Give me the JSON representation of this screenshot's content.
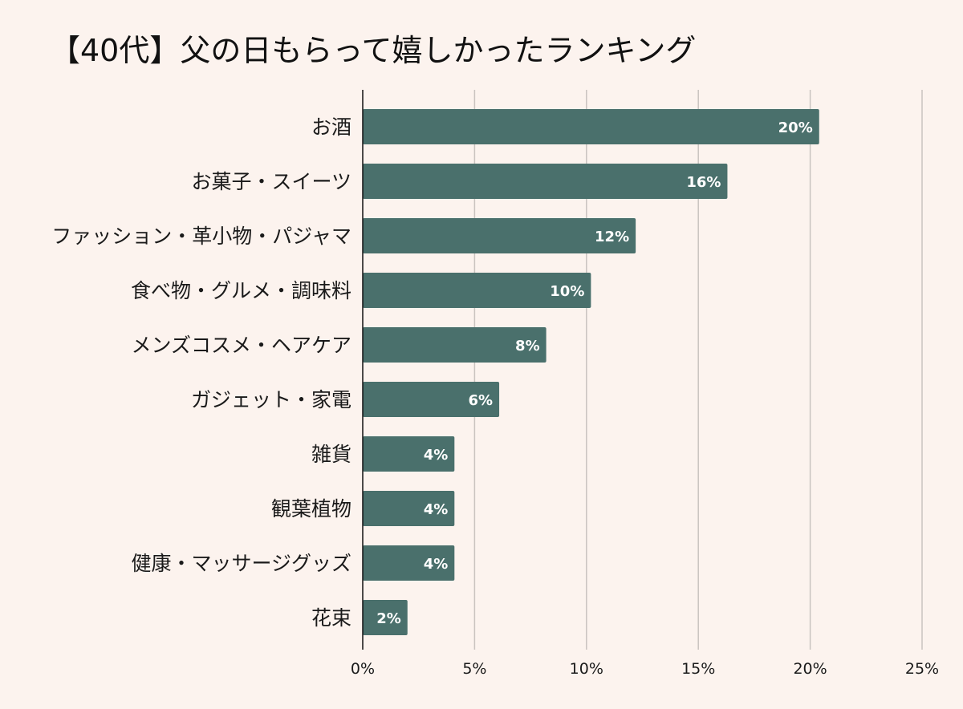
{
  "chart_data": {
    "type": "bar",
    "orientation": "horizontal",
    "title": "【40代】父の日もらって嬉しかったランキング",
    "xlabel": "",
    "ylabel": "",
    "categories": [
      "お酒",
      "お菓子・スイーツ",
      "ファッション・革小物・パジャマ",
      "食べ物・グルメ・調味料",
      "メンズコスメ・ヘアケア",
      "ガジェット・家電",
      "雑貨",
      "観葉植物",
      "健康・マッサージグッズ",
      "花束"
    ],
    "values": [
      20.4,
      16.3,
      12.2,
      10.2,
      8.2,
      6.1,
      4.1,
      4.1,
      4.1,
      2.0
    ],
    "value_labels": [
      "20%",
      "16%",
      "12%",
      "10%",
      "8%",
      "6%",
      "4%",
      "4%",
      "4%",
      "2%"
    ],
    "xlim": [
      0,
      25
    ],
    "x_ticks": [
      0,
      5,
      10,
      15,
      20,
      25
    ],
    "x_tick_labels": [
      "0%",
      "5%",
      "10%",
      "15%",
      "20%",
      "25%"
    ],
    "grid": true,
    "legend": "none",
    "colors": {
      "bar": "#4a706c",
      "grid": "#c9c3bf",
      "background": "#fcf3ee"
    }
  }
}
